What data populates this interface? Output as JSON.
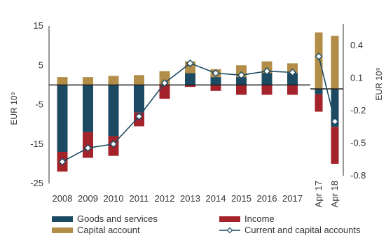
{
  "chart_data": [
    {
      "type": "bar",
      "stacked": true,
      "categories": [
        "2008",
        "2009",
        "2010",
        "2011",
        "2012",
        "2013",
        "2014",
        "2015",
        "2016",
        "2017"
      ],
      "ylabel": "EUR 10⁹",
      "ylim": [
        -25,
        15
      ],
      "yticks": [
        15,
        5,
        -5,
        -15,
        -25
      ],
      "grid": false,
      "series": [
        {
          "name": "Goods and services",
          "color": "#1d4a63",
          "values": [
            -17,
            -12,
            -13,
            -7,
            0,
            3,
            2,
            2,
            3,
            3
          ]
        },
        {
          "name": "Income",
          "color": "#a4232b",
          "values": [
            -5,
            -6.5,
            -5,
            -3.5,
            -3.5,
            -0.5,
            -1.5,
            -2.5,
            -2.5,
            -2.5
          ]
        },
        {
          "name": "Capital account",
          "color": "#b28d48",
          "values": [
            2,
            2,
            2.3,
            2.5,
            3.5,
            3,
            2,
            3,
            3,
            2.5
          ]
        },
        {
          "name": "Current and capital accounts",
          "type": "line",
          "color": "#1d4a63",
          "values": [
            -19.5,
            -16,
            -15,
            -8,
            0.5,
            5.5,
            3,
            2.5,
            3.5,
            3.2
          ]
        }
      ]
    },
    {
      "type": "bar",
      "stacked": true,
      "categories": [
        "Apr 17",
        "Apr 18"
      ],
      "ylabel": "EUR 10⁹",
      "ylim": [
        -0.8,
        0.6
      ],
      "yticks": [
        0.4,
        0.1,
        -0.2,
        -0.5,
        -0.8
      ],
      "grid": false,
      "series": [
        {
          "name": "Goods and services",
          "color": "#1d4a63",
          "values": [
            -0.05,
            -0.35
          ]
        },
        {
          "name": "Income",
          "color": "#a4232b",
          "values": [
            -0.16,
            -0.34
          ]
        },
        {
          "name": "Capital account",
          "color": "#b28d48",
          "values": [
            0.52,
            0.49
          ]
        },
        {
          "name": "Current and capital accounts",
          "type": "line",
          "color": "#1d4a63",
          "values": [
            0.3,
            -0.3
          ]
        }
      ]
    }
  ],
  "legend": {
    "placement": "bottom",
    "items": [
      {
        "label": "Goods and services",
        "color": "#1d4a63",
        "kind": "bar"
      },
      {
        "label": "Income",
        "color": "#a4232b",
        "kind": "bar"
      },
      {
        "label": "Capital account",
        "color": "#b28d48",
        "kind": "bar"
      },
      {
        "label": "Current and capital accounts",
        "color": "#1d4a63",
        "kind": "line"
      }
    ]
  }
}
